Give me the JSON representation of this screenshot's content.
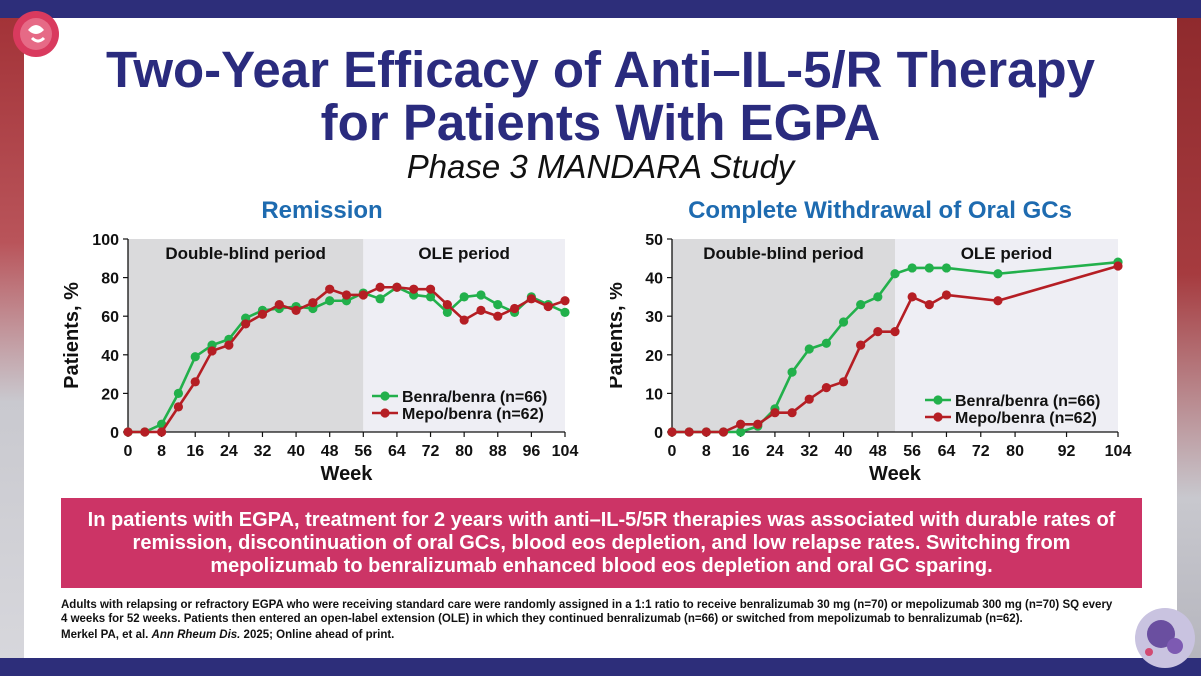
{
  "slide": {
    "title_line1": "Two-Year Efficacy of Anti–IL-5/R Therapy",
    "title_line2": "for Patients With EGPA",
    "subtitle": "Phase 3 MANDARA Study",
    "callout": "In patients with EGPA, treatment for 2 years with anti–IL-5/5R therapies was associated with durable rates of remission, discontinuation of oral GCs, blood eos depletion, and low relapse rates. Switching from mepolizumab to benralizumab enhanced blood eos depletion and oral GC sparing.",
    "footnote": "Adults with relapsing or refractory EGPA who were receiving standard care were randomly assigned in a 1:1 ratio to receive benralizumab 30 mg (n=70) or mepolizumab 300 mg (n=70) SQ every 4 weeks for 52 weeks. Patients then entered an open-label extension (OLE) in which they continued benralizumab (n=66) or switched from mepolizumab to benralizumab (n=62).",
    "citation_authors": "Merkel PA, et al. ",
    "citation_journal": "Ann Rheum Dis.",
    "citation_rest": " 2025; Online ahead of print."
  },
  "colors": {
    "title": "#2a2b7e",
    "chart_title": "#1e6bb0",
    "benra": "#22b04b",
    "mepo": "#b51e24",
    "double_blind_bg": "#dadadc",
    "ole_bg": "#eeeef4",
    "callout_bg": "#cc3466"
  },
  "chart_data": [
    {
      "type": "line",
      "title": "Remission",
      "xlabel": "Week",
      "ylabel": "Patients, %",
      "xlim": [
        0,
        104
      ],
      "ylim": [
        0,
        100
      ],
      "xticks": [
        0,
        8,
        16,
        24,
        32,
        40,
        48,
        56,
        64,
        72,
        80,
        88,
        96,
        104
      ],
      "yticks": [
        0,
        20,
        40,
        60,
        80,
        100
      ],
      "regions": [
        {
          "label": "Double-blind period",
          "from": 0,
          "to": 56,
          "kind": "double_blind"
        },
        {
          "label": "OLE period",
          "from": 56,
          "to": 104,
          "kind": "ole"
        }
      ],
      "legend_position": "bottom-right",
      "series": [
        {
          "name": "Benra/benra (n=66)",
          "color_key": "benra",
          "x": [
            0,
            4,
            8,
            12,
            16,
            20,
            24,
            28,
            32,
            36,
            40,
            44,
            48,
            52,
            56,
            60,
            64,
            68,
            72,
            76,
            80,
            84,
            88,
            92,
            96,
            100,
            104
          ],
          "y": [
            0,
            0,
            4,
            20,
            39,
            45,
            48,
            59,
            63,
            64,
            65,
            64,
            68,
            68,
            72,
            69,
            75,
            71,
            70,
            62,
            70,
            71,
            66,
            62,
            70,
            66,
            62
          ]
        },
        {
          "name": "Mepo/benra (n=62)",
          "color_key": "mepo",
          "x": [
            0,
            4,
            8,
            12,
            16,
            20,
            24,
            28,
            32,
            36,
            40,
            44,
            48,
            52,
            56,
            60,
            64,
            68,
            72,
            76,
            80,
            84,
            88,
            92,
            96,
            100,
            104
          ],
          "y": [
            0,
            0,
            0,
            13,
            26,
            42,
            45,
            56,
            61,
            66,
            63,
            67,
            74,
            71,
            71,
            75,
            75,
            74,
            74,
            66,
            58,
            63,
            60,
            64,
            69,
            65,
            68
          ]
        }
      ]
    },
    {
      "type": "line",
      "title": "Complete Withdrawal of Oral GCs",
      "xlabel": "Week",
      "ylabel": "Patients, %",
      "xlim": [
        0,
        104
      ],
      "ylim": [
        0,
        50
      ],
      "xticks": [
        0,
        8,
        16,
        24,
        32,
        40,
        48,
        56,
        64,
        72,
        80,
        92,
        104
      ],
      "yticks": [
        0,
        10,
        20,
        30,
        40,
        50
      ],
      "regions": [
        {
          "label": "Double-blind period",
          "from": 0,
          "to": 52,
          "kind": "double_blind"
        },
        {
          "label": "OLE period",
          "from": 52,
          "to": 104,
          "kind": "ole"
        }
      ],
      "legend_position": "bottom-right",
      "series": [
        {
          "name": "Benra/benra (n=66)",
          "color_key": "benra",
          "x": [
            0,
            4,
            8,
            12,
            16,
            20,
            24,
            28,
            32,
            36,
            40,
            44,
            48,
            52,
            56,
            60,
            64,
            76,
            104
          ],
          "y": [
            0,
            0,
            0,
            0,
            0,
            1.5,
            6,
            15.5,
            21.5,
            23,
            28.5,
            33,
            35,
            41,
            42.5,
            42.5,
            42.5,
            41,
            44
          ]
        },
        {
          "name": "Mepo/benra (n=62)",
          "color_key": "mepo",
          "x": [
            0,
            4,
            8,
            12,
            16,
            20,
            24,
            28,
            32,
            36,
            40,
            44,
            48,
            52,
            56,
            60,
            64,
            76,
            104
          ],
          "y": [
            0,
            0,
            0,
            0,
            2,
            2,
            5,
            5,
            8.5,
            11.5,
            13,
            22.5,
            26,
            26,
            35,
            33,
            35.5,
            34,
            43
          ]
        }
      ]
    }
  ]
}
